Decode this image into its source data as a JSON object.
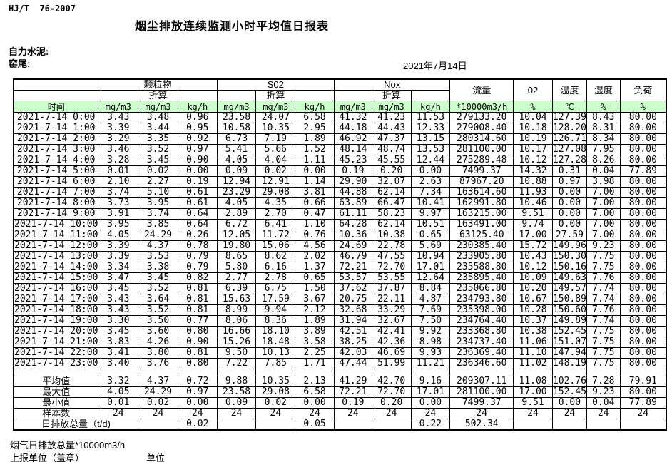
{
  "page": {
    "standard_code": "HJ/T  76-2007",
    "title": "烟尘排放连续监测小时平均值日报表",
    "company": "自力水泥:",
    "location": "窑尾:",
    "date": "2021年7月14日",
    "footer_note": "烟气日排放总量*10000m3/h",
    "footer_unit_left": "上报单位（盖章）",
    "footer_unit_right": "单位"
  },
  "colors": {
    "header_green": "#ccffcc",
    "border": "#000000"
  },
  "table": {
    "time_label": "时间",
    "converted_label": "折算",
    "groups": {
      "pm": "颗粒物",
      "so2": "S02",
      "nox": "Nox",
      "flow": "流量",
      "o2": "02",
      "temperature": "温度",
      "humidity": "湿度",
      "load": "负荷"
    },
    "units": [
      "mg/m3",
      "mg/m3",
      "kg/h",
      "mg/m3",
      "mg/m3",
      "kg/h",
      "mg/m3",
      "mg/m3",
      "kg/h",
      "*10000m3/h",
      "%",
      "℃",
      "%",
      "%"
    ],
    "rows": [
      {
        "time": "2021-7-14 0:00",
        "values": [
          "3.43",
          "3.48",
          "0.96",
          "23.58",
          "24.07",
          "6.58",
          "41.32",
          "41.23",
          "11.53",
          "279133.20",
          "10.04",
          "127.39",
          "8.43",
          "80.00"
        ]
      },
      {
        "time": "2021-7-14 1:00",
        "values": [
          "3.39",
          "3.44",
          "0.95",
          "10.58",
          "10.35",
          "2.95",
          "44.18",
          "44.43",
          "12.33",
          "279008.40",
          "10.18",
          "128.20",
          "8.31",
          "80.00"
        ]
      },
      {
        "time": "2021-7-14 2:00",
        "values": [
          "3.29",
          "3.35",
          "0.92",
          "6.73",
          "7.19",
          "1.89",
          "46.92",
          "47.37",
          "13.15",
          "280314.60",
          "10.19",
          "126.71",
          "8.34",
          "80.00"
        ]
      },
      {
        "time": "2021-7-14 3:00",
        "values": [
          "3.46",
          "3.52",
          "0.97",
          "5.41",
          "5.66",
          "1.52",
          "48.14",
          "48.74",
          "13.53",
          "281100.00",
          "10.17",
          "127.08",
          "7.95",
          "80.00"
        ]
      },
      {
        "time": "2021-7-14 4:00",
        "values": [
          "3.28",
          "3.45",
          "0.90",
          "4.05",
          "4.04",
          "1.11",
          "45.23",
          "45.55",
          "12.44",
          "275289.48",
          "10.12",
          "127.28",
          "8.26",
          "80.00"
        ]
      },
      {
        "time": "2021-7-14 5:00",
        "values": [
          "0.01",
          "0.02",
          "0.00",
          "0.09",
          "0.02",
          "0.00",
          "0.19",
          "0.20",
          "0.00",
          "7499.37",
          "14.32",
          "0.31",
          "0.04",
          "77.89"
        ]
      },
      {
        "time": "2021-7-14 6:00",
        "values": [
          "2.10",
          "2.27",
          "0.19",
          "12.94",
          "12.91",
          "1.14",
          "29.90",
          "32.07",
          "2.63",
          "87967.20",
          "10.88",
          "0.97",
          "3.98",
          "80.00"
        ]
      },
      {
        "time": "2021-7-14 7:00",
        "values": [
          "3.74",
          "5.10",
          "0.61",
          "23.29",
          "29.08",
          "3.81",
          "44.88",
          "62.14",
          "7.34",
          "163614.60",
          "11.93",
          "0.00",
          "7.00",
          "80.00"
        ]
      },
      {
        "time": "2021-7-14 8:00",
        "values": [
          "3.73",
          "3.95",
          "0.61",
          "4.05",
          "4.35",
          "0.66",
          "63.89",
          "66.47",
          "10.41",
          "162991.80",
          "10.46",
          "0.00",
          "7.00",
          "80.00"
        ]
      },
      {
        "time": "2021-7-14 9:00",
        "values": [
          "3.91",
          "3.74",
          "0.64",
          "2.89",
          "2.70",
          "0.47",
          "61.11",
          "58.23",
          "9.97",
          "163215.00",
          "9.51",
          "0.00",
          "7.00",
          "80.00"
        ]
      },
      {
        "time": "2021-7-14 10:00",
        "values": [
          "3.95",
          "3.85",
          "0.64",
          "6.72",
          "6.41",
          "1.10",
          "64.28",
          "62.14",
          "10.51",
          "163491.00",
          "9.74",
          "0.00",
          "7.00",
          "80.00"
        ]
      },
      {
        "time": "2021-7-14 11:00",
        "values": [
          "4.05",
          "24.29",
          "0.26",
          "12.05",
          "11.72",
          "0.76",
          "10.36",
          "10.38",
          "0.65",
          "63125.40",
          "17.00",
          "27.59",
          "7.00",
          "80.00"
        ]
      },
      {
        "time": "2021-7-14 12:00",
        "values": [
          "3.39",
          "4.37",
          "0.78",
          "19.80",
          "15.06",
          "4.56",
          "24.69",
          "22.78",
          "5.69",
          "230385.40",
          "15.72",
          "149.96",
          "9.23",
          "80.00"
        ]
      },
      {
        "time": "2021-7-14 13:00",
        "values": [
          "3.39",
          "3.53",
          "0.79",
          "8.65",
          "8.62",
          "2.02",
          "46.79",
          "47.55",
          "10.94",
          "233905.80",
          "10.43",
          "150.30",
          "7.75",
          "80.00"
        ]
      },
      {
        "time": "2021-7-14 14:00",
        "values": [
          "3.34",
          "3.38",
          "0.79",
          "5.80",
          "6.16",
          "1.37",
          "72.21",
          "72.70",
          "17.01",
          "235588.80",
          "10.12",
          "150.16",
          "7.75",
          "80.00"
        ]
      },
      {
        "time": "2021-7-14 15:00",
        "values": [
          "3.47",
          "3.45",
          "0.82",
          "2.77",
          "2.78",
          "0.65",
          "53.57",
          "53.55",
          "12.64",
          "235895.40",
          "10.09",
          "149.63",
          "7.76",
          "80.00"
        ]
      },
      {
        "time": "2021-7-14 16:00",
        "values": [
          "3.45",
          "3.52",
          "0.81",
          "6.39",
          "6.75",
          "1.50",
          "37.62",
          "37.87",
          "8.84",
          "235066.80",
          "10.20",
          "149.57",
          "7.74",
          "80.00"
        ]
      },
      {
        "time": "2021-7-14 17:00",
        "values": [
          "3.43",
          "3.64",
          "0.81",
          "15.63",
          "17.59",
          "3.67",
          "20.75",
          "22.11",
          "4.87",
          "234793.80",
          "10.67",
          "150.89",
          "7.74",
          "80.00"
        ]
      },
      {
        "time": "2021-7-14 18:00",
        "values": [
          "3.43",
          "3.52",
          "0.81",
          "8.99",
          "9.94",
          "2.12",
          "32.68",
          "33.29",
          "7.69",
          "235398.00",
          "10.28",
          "150.60",
          "7.76",
          "80.00"
        ]
      },
      {
        "time": "2021-7-14 19:00",
        "values": [
          "3.30",
          "3.50",
          "0.77",
          "8.06",
          "8.36",
          "1.89",
          "31.94",
          "32.67",
          "7.50",
          "234764.40",
          "10.37",
          "149.89",
          "7.74",
          "80.00"
        ]
      },
      {
        "time": "2021-7-14 20:00",
        "values": [
          "3.45",
          "3.60",
          "0.80",
          "16.66",
          "18.10",
          "3.89",
          "42.51",
          "42.41",
          "9.92",
          "233368.80",
          "10.38",
          "152.45",
          "7.75",
          "80.00"
        ]
      },
      {
        "time": "2021-7-14 21:00",
        "values": [
          "3.83",
          "4.26",
          "0.90",
          "15.26",
          "18.48",
          "3.58",
          "38.25",
          "42.36",
          "8.98",
          "234737.40",
          "11.06",
          "151.07",
          "7.75",
          "80.00"
        ]
      },
      {
        "time": "2021-7-14 22:00",
        "values": [
          "3.41",
          "3.80",
          "0.81",
          "9.50",
          "10.13",
          "2.25",
          "42.03",
          "46.69",
          "9.93",
          "236369.40",
          "11.10",
          "147.94",
          "7.75",
          "80.00"
        ]
      },
      {
        "time": "2021-7-14 23:00",
        "values": [
          "3.40",
          "3.76",
          "0.80",
          "7.22",
          "7.85",
          "1.71",
          "47.44",
          "51.99",
          "11.21",
          "236346.60",
          "11.02",
          "148.19",
          "7.75",
          "80.00"
        ]
      }
    ],
    "summary": [
      {
        "label": "平均值",
        "values": [
          "3.32",
          "4.37",
          "0.72",
          "9.88",
          "10.35",
          "2.13",
          "41.29",
          "42.70",
          "9.16",
          "209307.11",
          "11.08",
          "102.76",
          "7.28",
          "79.91"
        ]
      },
      {
        "label": "最大值",
        "values": [
          "4.05",
          "24.29",
          "0.97",
          "23.58",
          "29.08",
          "6.58",
          "72.21",
          "72.70",
          "17.01",
          "281100.00",
          "17.00",
          "152.45",
          "9.23",
          "80.00"
        ]
      },
      {
        "label": "最小值",
        "values": [
          "0.01",
          "0.02",
          "0.00",
          "0.09",
          "0.02",
          "0.00",
          "0.19",
          "0.20",
          "0.00",
          "7499.37",
          "9.51",
          "0.00",
          "0.04",
          "77.89"
        ]
      },
      {
        "label": "样本数",
        "values": [
          "24",
          "24",
          "24",
          "24",
          "24",
          "24",
          "24",
          "24",
          "24",
          "24",
          "24",
          "24",
          "24",
          "24"
        ]
      }
    ],
    "daily_total": {
      "label": "日排放总量（t/d)",
      "values": [
        "",
        "0.02",
        "",
        "",
        "0.05",
        "",
        "",
        "0.22",
        "502.34",
        "",
        "",
        "",
        ""
      ]
    }
  }
}
